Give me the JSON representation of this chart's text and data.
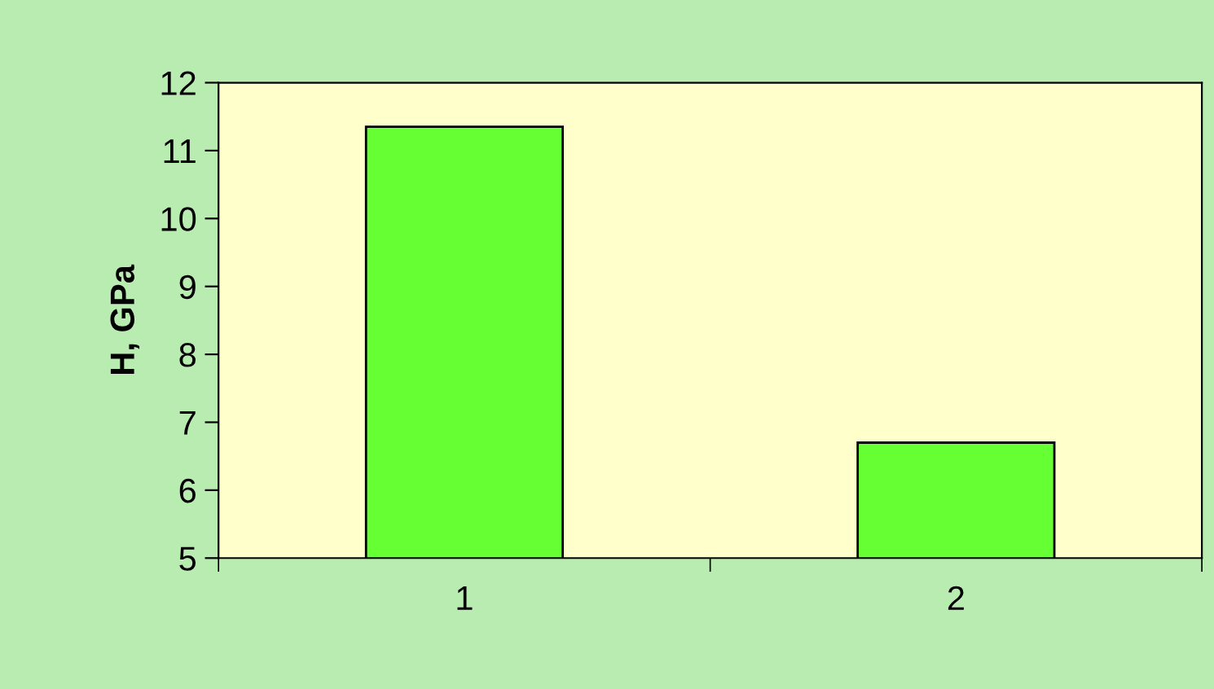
{
  "chart_data": {
    "type": "bar",
    "ylabel": "H, GPa",
    "categories": [
      "1",
      "2"
    ],
    "values": [
      11.35,
      6.7
    ],
    "color": "#66ff33",
    "ylim": [
      5,
      12
    ],
    "yticks": [
      5,
      6,
      7,
      8,
      9,
      10,
      11,
      12
    ],
    "grid": false,
    "legend": false
  }
}
